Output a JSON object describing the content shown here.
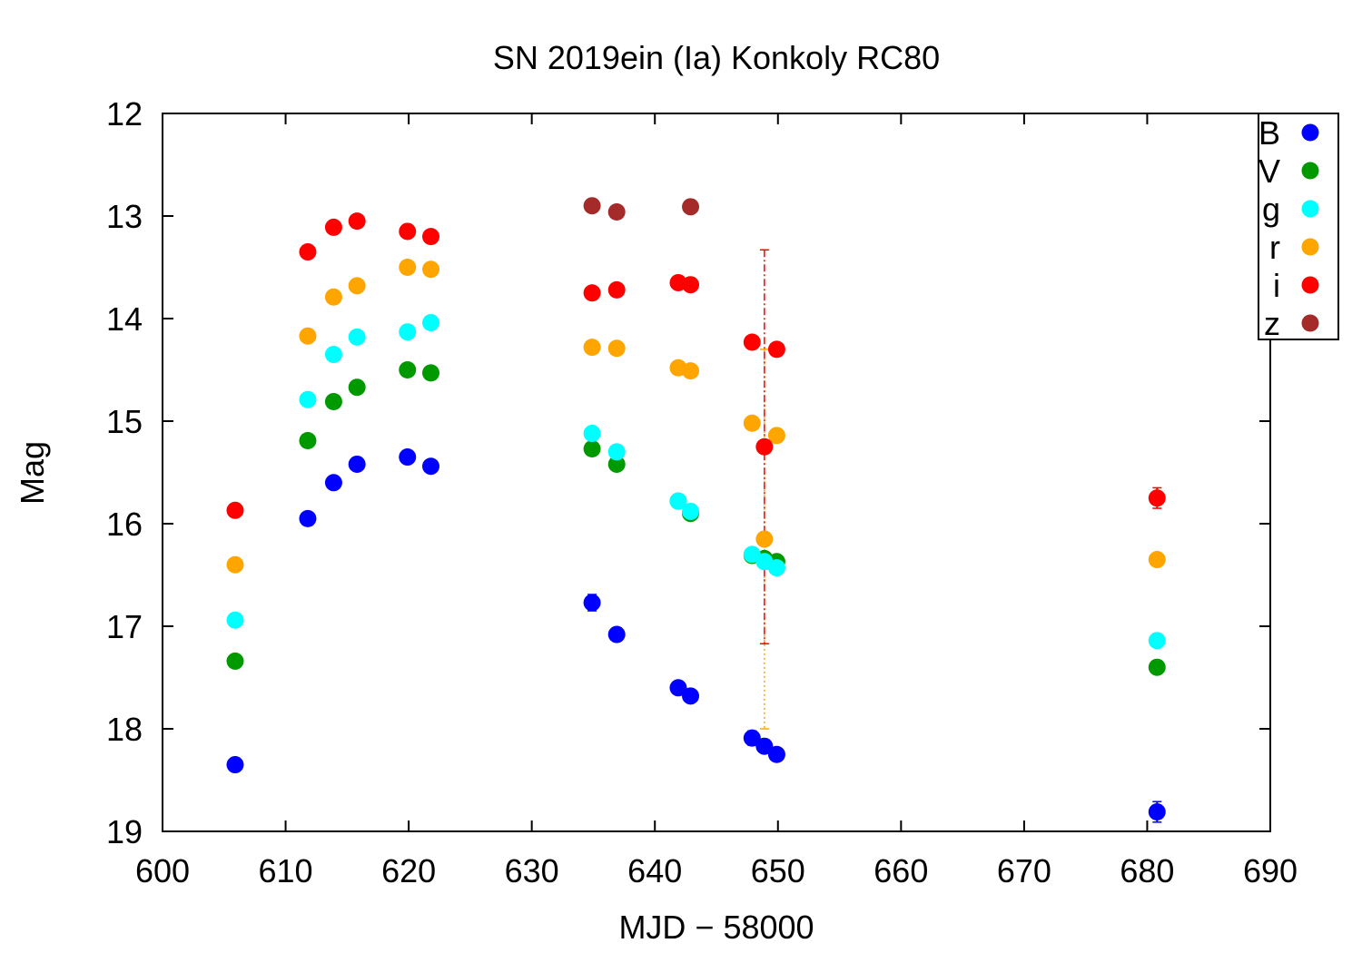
{
  "chart_data": {
    "type": "scatter",
    "title": "SN 2019ein (Ia) Konkoly RC80",
    "xlabel": "MJD − 58000",
    "ylabel": "Mag",
    "xlim": [
      600,
      690
    ],
    "ylim": [
      19,
      12
    ],
    "y_inverted": true,
    "grid": false,
    "legend_position": "top-right",
    "x_ticks": [
      600,
      610,
      620,
      630,
      640,
      650,
      660,
      670,
      680,
      690
    ],
    "y_ticks": [
      12,
      13,
      14,
      15,
      16,
      17,
      18,
      19
    ],
    "series": [
      {
        "name": "B",
        "color": "#0000ff",
        "points": [
          {
            "x": 605.9,
            "y": 18.35,
            "err": 0.03
          },
          {
            "x": 611.8,
            "y": 15.95,
            "err": 0.03
          },
          {
            "x": 613.9,
            "y": 15.6,
            "err": 0.03
          },
          {
            "x": 615.8,
            "y": 15.42,
            "err": 0.03
          },
          {
            "x": 619.9,
            "y": 15.35,
            "err": 0.03
          },
          {
            "x": 621.8,
            "y": 15.44,
            "err": 0.03
          },
          {
            "x": 634.9,
            "y": 16.77,
            "err": 0.08
          },
          {
            "x": 636.9,
            "y": 17.08,
            "err": 0.05
          },
          {
            "x": 641.9,
            "y": 17.6,
            "err": 0.04
          },
          {
            "x": 642.9,
            "y": 17.68,
            "err": 0.04
          },
          {
            "x": 647.9,
            "y": 18.09,
            "err": 0.07
          },
          {
            "x": 648.9,
            "y": 18.17,
            "err": 0.05
          },
          {
            "x": 649.9,
            "y": 18.25,
            "err": 0.05
          },
          {
            "x": 680.8,
            "y": 18.81,
            "err": 0.1
          }
        ]
      },
      {
        "name": "V",
        "color": "#009900",
        "points": [
          {
            "x": 605.9,
            "y": 17.34,
            "err": 0.03
          },
          {
            "x": 611.8,
            "y": 15.19,
            "err": 0.03
          },
          {
            "x": 613.9,
            "y": 14.81,
            "err": 0.06
          },
          {
            "x": 615.8,
            "y": 14.67,
            "err": 0.03
          },
          {
            "x": 619.9,
            "y": 14.5,
            "err": 0.03
          },
          {
            "x": 621.8,
            "y": 14.53,
            "err": 0.05
          },
          {
            "x": 634.9,
            "y": 15.27,
            "err": 0.04
          },
          {
            "x": 636.9,
            "y": 15.42,
            "err": 0.04
          },
          {
            "x": 641.9,
            "y": 15.78,
            "err": 0.03
          },
          {
            "x": 642.9,
            "y": 15.9,
            "err": 0.03
          },
          {
            "x": 647.9,
            "y": 16.31,
            "err": 0.05
          },
          {
            "x": 648.9,
            "y": 16.34,
            "err": 0.04
          },
          {
            "x": 649.9,
            "y": 16.37,
            "err": 0.04
          },
          {
            "x": 680.8,
            "y": 17.4,
            "err": 0.04
          }
        ]
      },
      {
        "name": "g",
        "color": "#00ffff",
        "points": [
          {
            "x": 605.9,
            "y": 16.94,
            "err": 0.03
          },
          {
            "x": 611.8,
            "y": 14.79,
            "err": 0.03
          },
          {
            "x": 613.9,
            "y": 14.35,
            "err": 0.03
          },
          {
            "x": 615.8,
            "y": 14.18,
            "err": 0.03
          },
          {
            "x": 619.9,
            "y": 14.13,
            "err": 0.03
          },
          {
            "x": 621.8,
            "y": 14.04,
            "err": 0.06
          },
          {
            "x": 634.9,
            "y": 15.12,
            "err": 0.04
          },
          {
            "x": 636.9,
            "y": 15.3,
            "err": 0.04
          },
          {
            "x": 641.9,
            "y": 15.78,
            "err": 0.03
          },
          {
            "x": 642.9,
            "y": 15.88,
            "err": 0.03
          },
          {
            "x": 647.9,
            "y": 16.3,
            "err": 0.06
          },
          {
            "x": 648.9,
            "y": 16.37,
            "err": 0.04
          },
          {
            "x": 649.9,
            "y": 16.43,
            "err": 0.04
          },
          {
            "x": 680.8,
            "y": 17.14,
            "err": 0.04
          }
        ]
      },
      {
        "name": "r",
        "color": "#ffa500",
        "points": [
          {
            "x": 605.9,
            "y": 16.4,
            "err": 0.03
          },
          {
            "x": 611.8,
            "y": 14.17,
            "err": 0.03
          },
          {
            "x": 613.9,
            "y": 13.79,
            "err": 0.03
          },
          {
            "x": 615.8,
            "y": 13.68,
            "err": 0.03
          },
          {
            "x": 619.9,
            "y": 13.5,
            "err": 0.03
          },
          {
            "x": 621.8,
            "y": 13.52,
            "err": 0.03
          },
          {
            "x": 634.9,
            "y": 14.28,
            "err": 0.03
          },
          {
            "x": 636.9,
            "y": 14.29,
            "err": 0.03
          },
          {
            "x": 641.9,
            "y": 14.48,
            "err": 0.03
          },
          {
            "x": 642.9,
            "y": 14.51,
            "err": 0.03
          },
          {
            "x": 647.9,
            "y": 15.02,
            "err": 0.03
          },
          {
            "x": 648.9,
            "y": 16.15,
            "err": 1.85
          },
          {
            "x": 649.9,
            "y": 15.14,
            "err": 0.03
          },
          {
            "x": 680.8,
            "y": 16.35,
            "err": 0.03
          }
        ]
      },
      {
        "name": "i",
        "color": "#ff0000",
        "points": [
          {
            "x": 605.9,
            "y": 15.87,
            "err": 0.03
          },
          {
            "x": 611.8,
            "y": 13.35,
            "err": 0.03
          },
          {
            "x": 613.9,
            "y": 13.11,
            "err": 0.03
          },
          {
            "x": 615.8,
            "y": 13.05,
            "err": 0.03
          },
          {
            "x": 619.9,
            "y": 13.15,
            "err": 0.03
          },
          {
            "x": 621.8,
            "y": 13.2,
            "err": 0.03
          },
          {
            "x": 634.9,
            "y": 13.75,
            "err": 0.03
          },
          {
            "x": 636.9,
            "y": 13.72,
            "err": 0.03
          },
          {
            "x": 641.9,
            "y": 13.65,
            "err": 0.03
          },
          {
            "x": 642.9,
            "y": 13.67,
            "err": 0.03
          },
          {
            "x": 647.9,
            "y": 14.23,
            "err": 0.03
          },
          {
            "x": 648.9,
            "y": 15.25,
            "err": 1.92
          },
          {
            "x": 649.9,
            "y": 14.3,
            "err": 0.03
          },
          {
            "x": 680.8,
            "y": 15.75,
            "err": 0.1
          }
        ]
      },
      {
        "name": "z",
        "color": "#a52a2a",
        "points": [
          {
            "x": 634.9,
            "y": 12.9,
            "err": 0.03
          },
          {
            "x": 636.9,
            "y": 12.96,
            "err": 0.03
          },
          {
            "x": 642.9,
            "y": 12.91,
            "err": 0.03
          }
        ]
      }
    ]
  }
}
